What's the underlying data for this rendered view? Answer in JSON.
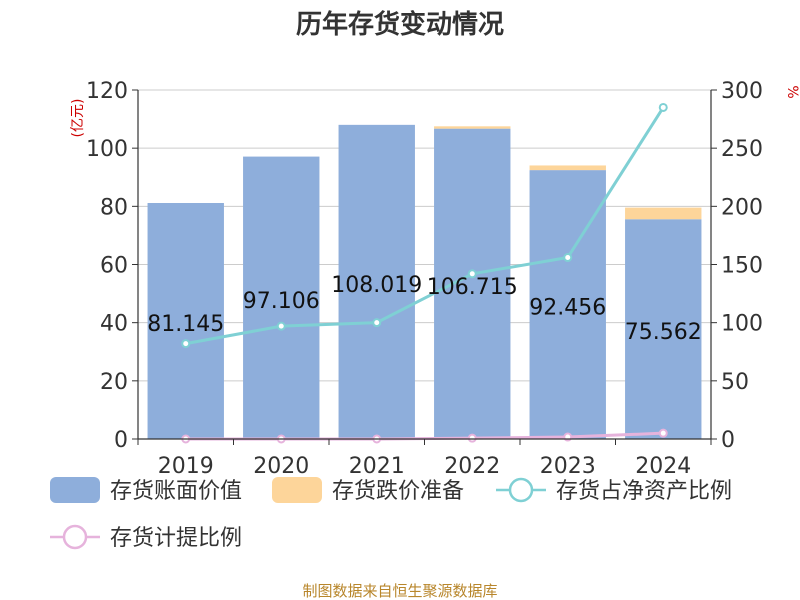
{
  "chart_data": {
    "type": "bar",
    "title": "历年存货变动情况",
    "categories": [
      "2019",
      "2020",
      "2021",
      "2022",
      "2023",
      "2024"
    ],
    "ylabel": "(亿元)",
    "y2label": "%",
    "ylim": [
      0,
      120
    ],
    "y2lim": [
      0,
      300
    ],
    "yticks": [
      "0",
      "20",
      "40",
      "60",
      "80",
      "100",
      "120"
    ],
    "y2ticks": [
      "0",
      "50",
      "100",
      "150",
      "200",
      "250",
      "300"
    ],
    "grid": true,
    "legend_position": "bottom",
    "series": [
      {
        "name": "存货账面价值",
        "type": "bar",
        "stack": "s",
        "axis": "left",
        "color": "#8eaedb",
        "values": [
          81.145,
          97.106,
          108.019,
          106.715,
          92.456,
          75.562
        ],
        "labels": [
          "81.145",
          "97.106",
          "108.019",
          "106.715",
          "92.456",
          "75.562"
        ]
      },
      {
        "name": "存货跌价准备",
        "type": "bar",
        "stack": "s",
        "axis": "left",
        "color": "#fdd59a",
        "values": [
          0,
          0,
          0,
          0.8,
          1.6,
          4.0
        ]
      },
      {
        "name": "存货占净资产比例",
        "type": "line",
        "axis": "right",
        "color": "#7fd0d4",
        "values": [
          82,
          97,
          100,
          142,
          156,
          285
        ]
      },
      {
        "name": "存货计提比例",
        "type": "line",
        "axis": "right",
        "color": "#e6b3dc",
        "values": [
          0,
          0,
          0,
          0.7,
          1.7,
          5.0
        ]
      }
    ]
  },
  "source_text": "制图数据来自恒生聚源数据库"
}
